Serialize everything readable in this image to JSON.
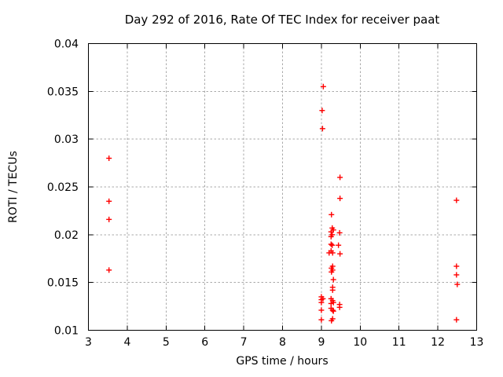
{
  "chart_data": {
    "type": "scatter",
    "title": "Day 292 of 2016, Rate Of TEC Index for receiver paat",
    "xlabel": "GPS time / hours",
    "ylabel": "ROTI / TECUs",
    "xlim": [
      3,
      13
    ],
    "ylim": [
      0.01,
      0.04
    ],
    "x_ticks": [
      3,
      4,
      5,
      6,
      7,
      8,
      9,
      10,
      11,
      12,
      13
    ],
    "x_tick_labels": [
      "3",
      "4",
      "5",
      "6",
      "7",
      "8",
      "9",
      "10",
      "11",
      "12",
      "13"
    ],
    "y_ticks": [
      0.01,
      0.015,
      0.02,
      0.025,
      0.03,
      0.035,
      0.04
    ],
    "y_tick_labels": [
      "0.01",
      "0.015",
      "0.02",
      "0.025",
      "0.03",
      "0.035",
      "0.04"
    ],
    "grid": "dashed",
    "grid_color": "#a9a9a9",
    "border_color": "#000000",
    "marker": "plus",
    "marker_color": "#ff0000",
    "legend": "none",
    "points": [
      [
        3.53,
        0.028
      ],
      [
        3.53,
        0.0235
      ],
      [
        3.53,
        0.0216
      ],
      [
        3.53,
        0.0163
      ],
      [
        9.05,
        0.0355
      ],
      [
        9.02,
        0.033
      ],
      [
        9.03,
        0.0311
      ],
      [
        9.48,
        0.026
      ],
      [
        9.48,
        0.0238
      ],
      [
        9.26,
        0.0221
      ],
      [
        9.28,
        0.0207
      ],
      [
        9.31,
        0.0205
      ],
      [
        9.25,
        0.0203
      ],
      [
        9.47,
        0.0202
      ],
      [
        9.28,
        0.02
      ],
      [
        9.25,
        0.0198
      ],
      [
        9.25,
        0.019
      ],
      [
        9.28,
        0.0189
      ],
      [
        9.44,
        0.0189
      ],
      [
        9.25,
        0.0183
      ],
      [
        9.29,
        0.0181
      ],
      [
        9.2,
        0.0181
      ],
      [
        9.48,
        0.018
      ],
      [
        9.29,
        0.0167
      ],
      [
        9.26,
        0.0165
      ],
      [
        9.29,
        0.0163
      ],
      [
        9.26,
        0.0161
      ],
      [
        9.31,
        0.0153
      ],
      [
        9.29,
        0.0145
      ],
      [
        9.29,
        0.0142
      ],
      [
        9.0,
        0.0135
      ],
      [
        9.04,
        0.0133
      ],
      [
        9.0,
        0.0132
      ],
      [
        9.0,
        0.0129
      ],
      [
        9.0,
        0.0121
      ],
      [
        9.0,
        0.0111
      ],
      [
        9.25,
        0.0133
      ],
      [
        9.29,
        0.0131
      ],
      [
        9.31,
        0.0129
      ],
      [
        9.25,
        0.0128
      ],
      [
        9.47,
        0.0127
      ],
      [
        9.47,
        0.0124
      ],
      [
        9.25,
        0.0123
      ],
      [
        9.29,
        0.0121
      ],
      [
        9.31,
        0.012
      ],
      [
        9.29,
        0.0112
      ],
      [
        9.26,
        0.011
      ],
      [
        12.48,
        0.0236
      ],
      [
        12.48,
        0.0167
      ],
      [
        12.48,
        0.0158
      ],
      [
        12.5,
        0.0148
      ],
      [
        12.48,
        0.0111
      ]
    ]
  }
}
